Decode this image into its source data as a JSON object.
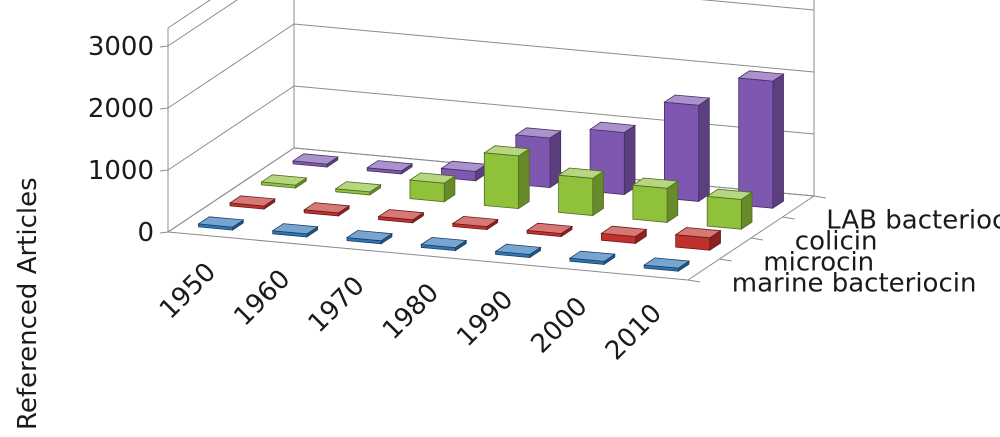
{
  "chart_data": {
    "type": "bar",
    "variant": "3d-column",
    "title": "",
    "xlabel": "",
    "ylabel": "Referenced Articles",
    "ylim": [
      0,
      3000
    ],
    "y_ticks": [
      "0",
      "1000",
      "2000",
      "3000"
    ],
    "categories": [
      "1950",
      "1960",
      "1970",
      "1980",
      "1990",
      "2000",
      "2010"
    ],
    "series": [
      {
        "name": "marine bacteriocin",
        "color": "#2e75b6",
        "values": [
          0,
          0,
          0,
          0,
          0,
          0,
          0
        ]
      },
      {
        "name": "microcin",
        "color": "#c0302c",
        "values": [
          0,
          0,
          0,
          0,
          40,
          110,
          200
        ]
      },
      {
        "name": "colicin",
        "color": "#8fc13a",
        "values": [
          0,
          0,
          300,
          850,
          600,
          550,
          480
        ]
      },
      {
        "name": "LAB bacteriocin",
        "color": "#7e57b0",
        "values": [
          0,
          0,
          150,
          800,
          1000,
          1550,
          2050
        ]
      }
    ],
    "grid": true,
    "legend": "none"
  }
}
